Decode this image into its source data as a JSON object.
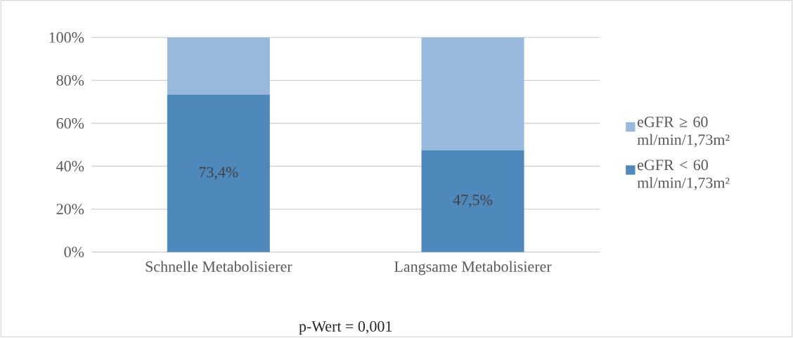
{
  "chart_data": {
    "type": "bar",
    "stacked": true,
    "categories": [
      "Schnelle Metabolisierer",
      "Langsame Metabolisierer"
    ],
    "series": [
      {
        "name": "eGFR < 60 ml/min/1,73m²",
        "color": "#4f88bb",
        "values": [
          73.4,
          47.5
        ],
        "value_labels": [
          "73,4%",
          "47,5%"
        ]
      },
      {
        "name": "eGFR ≥ 60 ml/min/1,73m²",
        "color": "#98b8de",
        "values": [
          26.6,
          52.5
        ]
      }
    ],
    "ylim": [
      0,
      100
    ],
    "yticks": [
      {
        "value": 0,
        "label": "0%"
      },
      {
        "value": 20,
        "label": "20%"
      },
      {
        "value": 40,
        "label": "40%"
      },
      {
        "value": 60,
        "label": "60%"
      },
      {
        "value": 80,
        "label": "80%"
      },
      {
        "value": 100,
        "label": "100%"
      }
    ],
    "grid": "y",
    "legend": "right",
    "annotations": [
      "p-Wert = 0,001"
    ]
  }
}
